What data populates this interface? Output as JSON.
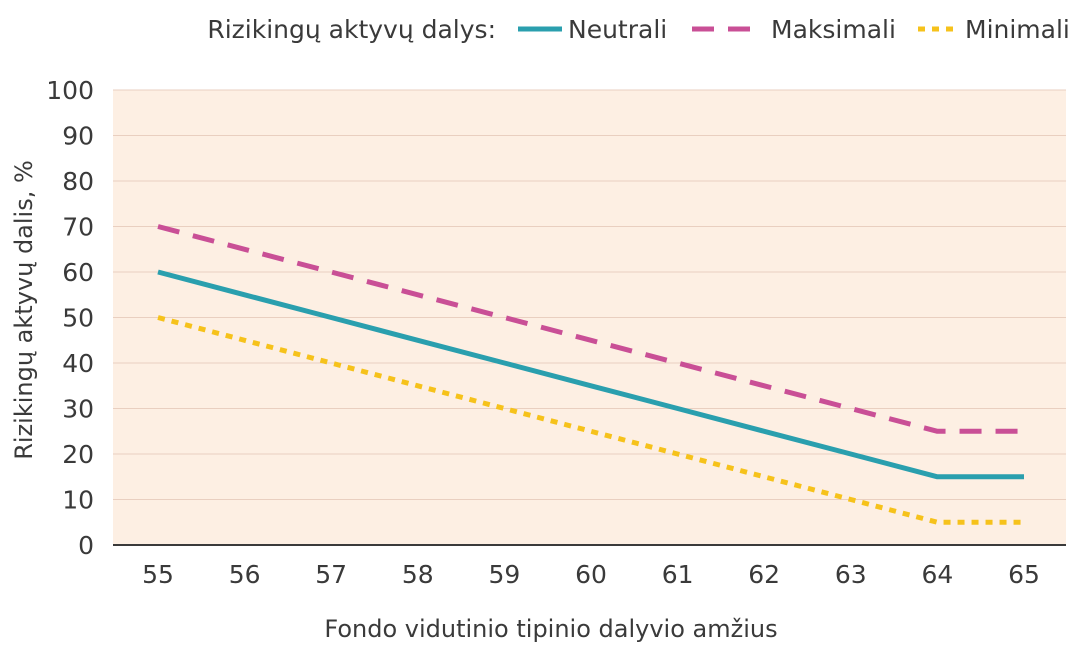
{
  "chart_data": {
    "type": "line",
    "legend_title": "Rizikingų aktyvų dalys:",
    "legend_position": "top-right",
    "xlabel": "Fondo vidutinio tipinio dalyvio amžius",
    "ylabel": "Rizikingų aktyvų dalis, %",
    "x": [
      55,
      56,
      57,
      58,
      59,
      60,
      61,
      62,
      63,
      64,
      65
    ],
    "ylim": [
      0,
      100
    ],
    "yticks": [
      0,
      10,
      20,
      30,
      40,
      50,
      60,
      70,
      80,
      90,
      100
    ],
    "grid": true,
    "series": [
      {
        "name": "Neutrali",
        "style": "solid",
        "color": "#2a9fae",
        "values": [
          60,
          55,
          50,
          45,
          40,
          35,
          30,
          25,
          20,
          15,
          15
        ]
      },
      {
        "name": "Maksimali",
        "style": "dashed",
        "color": "#c94f96",
        "values": [
          70,
          65,
          60,
          55,
          50,
          45,
          40,
          35,
          30,
          25,
          25
        ]
      },
      {
        "name": "Minimali",
        "style": "dotted",
        "color": "#f6c21b",
        "values": [
          50,
          45,
          40,
          35,
          30,
          25,
          20,
          15,
          10,
          5,
          5
        ]
      }
    ]
  },
  "colors": {
    "plot_background": "#fdefe3",
    "grid": "#e9cfc0",
    "axis": "#3a3a3a"
  }
}
